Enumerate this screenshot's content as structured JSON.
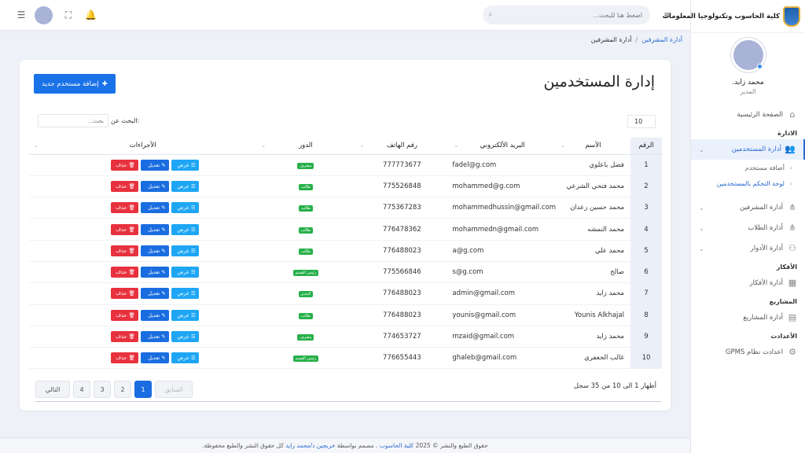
{
  "brand": {
    "title": "كلية الحاسوب وتكنولوجيا المعلومات"
  },
  "profile": {
    "name": "محمد زايد.",
    "role": "المدير"
  },
  "sidebar": {
    "home": "الصفحة الرئيسية",
    "sec_admin": "الادارة",
    "users": "أدارة المستخدمين",
    "sub_add": "أضافة مستخدم",
    "sub_panel": "لوحة التحكم بالمستخدمين",
    "supervisors": "أدارة المشرفين",
    "students": "أدارة الطلاب",
    "roles": "أدارة الأدوار",
    "sec_ideas": "الأفكار",
    "ideas": "أدارة الأفكار",
    "sec_projects": "المشاريع",
    "projects": "أدارة المشاريع",
    "sec_settings": "الأعدادت",
    "settings": "اعدادت نظام GPMS"
  },
  "topbar": {
    "search_placeholder": "اضغط هنا للبحث..."
  },
  "breadcrumb": {
    "parent": "أدارة المشرفين",
    "current": "أدارة المشرفين"
  },
  "page": {
    "title": "إدارة المستخدمين",
    "add_button": "إضافة مستخدم جديد",
    "search_label": "البحث عن:",
    "search_placeholder": "بحث...",
    "page_length": "10"
  },
  "table": {
    "headers": {
      "num": "الرقم",
      "name": "الأسم",
      "email": "البريد الألكتروني",
      "phone": "رقم الهاتف",
      "role": "الدور",
      "actions": "الأجراءات"
    },
    "view_label": "عرض",
    "edit_label": "تعديل",
    "delete_label": "حذف",
    "rows": [
      {
        "num": "1",
        "name": "فضل باعلوي",
        "email": "fadel@g.com",
        "phone": "777773677",
        "role": "مشرف"
      },
      {
        "num": "2",
        "name": "محمد فتحي الشرعي",
        "email": "mohammed@g.com",
        "phone": "775526848",
        "role": "طالب"
      },
      {
        "num": "3",
        "name": "محمد حسين زعدان",
        "email": "mohammedhussin@gmail.com",
        "phone": "775367283",
        "role": "طالب"
      },
      {
        "num": "4",
        "name": "محمد النمشه",
        "email": "mohammedn@gmail.com",
        "phone": "776478362",
        "role": "طالب"
      },
      {
        "num": "5",
        "name": "محمد علي",
        "email": "a@g.com",
        "phone": "776488023",
        "role": "طالب"
      },
      {
        "num": "6",
        "name": "صالح",
        "email": "s@g.com",
        "phone": "775566846",
        "role": "رئيس القسم"
      },
      {
        "num": "7",
        "name": "محمد زايد",
        "email": "admin@gmail.com",
        "phone": "776488023",
        "role": "المدير"
      },
      {
        "num": "8",
        "name": "Younis Alkhajal",
        "email": "younis@gmail.com",
        "phone": "776488023",
        "role": "طالب"
      },
      {
        "num": "9",
        "name": "محمد زايد",
        "email": "mzaid@gmail.com",
        "phone": "774653727",
        "role": "مشرف"
      },
      {
        "num": "10",
        "name": "غالب الجعفري",
        "email": "ghaleb@gmail.com",
        "phone": "776655443",
        "role": "رئيس القسم"
      }
    ]
  },
  "info": "أظهار 1 الى 10 من 35 سجل",
  "pagination": {
    "prev": "السابق",
    "pages": [
      "1",
      "2",
      "3",
      "4"
    ],
    "next": "التالي"
  },
  "footer": {
    "prefix": "حقوق الطبع والنشر © 2025",
    "college": "كلية الحاسوب",
    "middle": ". مصمم بواسطة",
    "designer": "خريجين د/محمد زايد",
    "suffix": "كل حقوق النشر والطبع محفوظة."
  }
}
